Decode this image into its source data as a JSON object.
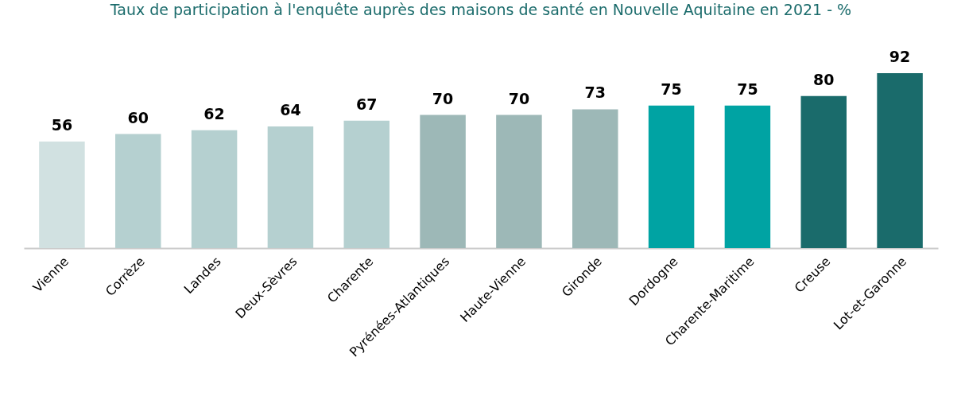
{
  "chart_data": {
    "type": "bar",
    "title": "Taux de participation à l'enquête auprès des maisons de santé en Nouvelle Aquitaine en 2021 - %",
    "categories": [
      "Vienne",
      "Corrèze",
      "Landes",
      "Deux-Sèvres",
      "Charente",
      "Pyrénées-Atlantiques",
      "Haute-Vienne",
      "Gironde",
      "Dordogne",
      "Charente-Maritime",
      "Creuse",
      "Lot-et-Garonne"
    ],
    "values": [
      56,
      60,
      62,
      64,
      67,
      70,
      70,
      73,
      75,
      75,
      80,
      92
    ],
    "colors": [
      "#d1e1e1",
      "#b5d0d0",
      "#b5d0d0",
      "#b5d0d0",
      "#b5d0d0",
      "#9db8b7",
      "#9db8b7",
      "#9db8b7",
      "#00a3a3",
      "#00a3a3",
      "#1a6b6b",
      "#1a6b6b"
    ],
    "data_labels": true
  }
}
